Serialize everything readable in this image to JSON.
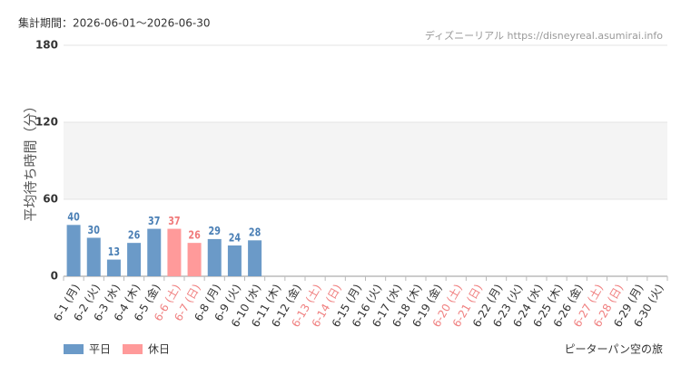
{
  "chart_data": {
    "type": "bar",
    "title": "集計期間：2026-06-01～2026-06-30",
    "source": "ディズニーリアル https://disneyreal.asumirai.info",
    "subject": "ピーターパン空の旅",
    "y_label": "平均待ち時間（分）",
    "categories": [
      "6-1 (月)",
      "6-2 (火)",
      "6-3 (水)",
      "6-4 (木)",
      "6-5 (金)",
      "6-6 (土)",
      "6-7 (日)",
      "6-8 (月)",
      "6-9 (火)",
      "6-10 (水)",
      "6-11 (木)",
      "6-12 (金)",
      "6-13 (土)",
      "6-14 (日)",
      "6-15 (月)",
      "6-16 (火)",
      "6-17 (水)",
      "6-18 (木)",
      "6-19 (金)",
      "6-20 (土)",
      "6-21 (日)",
      "6-22 (月)",
      "6-23 (火)",
      "6-24 (水)",
      "6-25 (木)",
      "6-26 (金)",
      "6-27 (土)",
      "6-28 (日)",
      "6-29 (月)",
      "6-30 (火)"
    ],
    "category_label_colors": [
      "#333",
      "#333",
      "#333",
      "#333",
      "#333",
      "#f08080",
      "#f08080",
      "#333",
      "#333",
      "#333",
      "#333",
      "#333",
      "#f08080",
      "#f08080",
      "#333",
      "#333",
      "#333",
      "#333",
      "#333",
      "#f08080",
      "#f08080",
      "#333",
      "#333",
      "#333",
      "#333",
      "#333",
      "#f08080",
      "#f08080",
      "#333",
      "#333"
    ],
    "series": [
      {
        "name": "平日",
        "color": "#6b9ac8",
        "label_color": "#4a7fb5",
        "values": [
          40,
          30,
          13,
          26,
          37,
          null,
          null,
          29,
          24,
          28,
          null,
          null,
          null,
          null,
          null,
          null,
          null,
          null,
          null,
          null,
          null,
          null,
          null,
          null,
          null,
          null,
          null,
          null,
          null,
          null
        ]
      },
      {
        "name": "休日",
        "color": "#ff9a9a",
        "label_color": "#f07a7a",
        "values": [
          null,
          null,
          null,
          null,
          null,
          37,
          26,
          null,
          null,
          null,
          null,
          null,
          null,
          null,
          null,
          null,
          null,
          null,
          null,
          null,
          null,
          null,
          null,
          null,
          null,
          null,
          null,
          null,
          null,
          null
        ]
      }
    ],
    "ylim": [
      0,
      180
    ],
    "yticks": [
      0,
      60,
      120,
      180
    ],
    "band": [
      60,
      120
    ],
    "grid": true
  }
}
